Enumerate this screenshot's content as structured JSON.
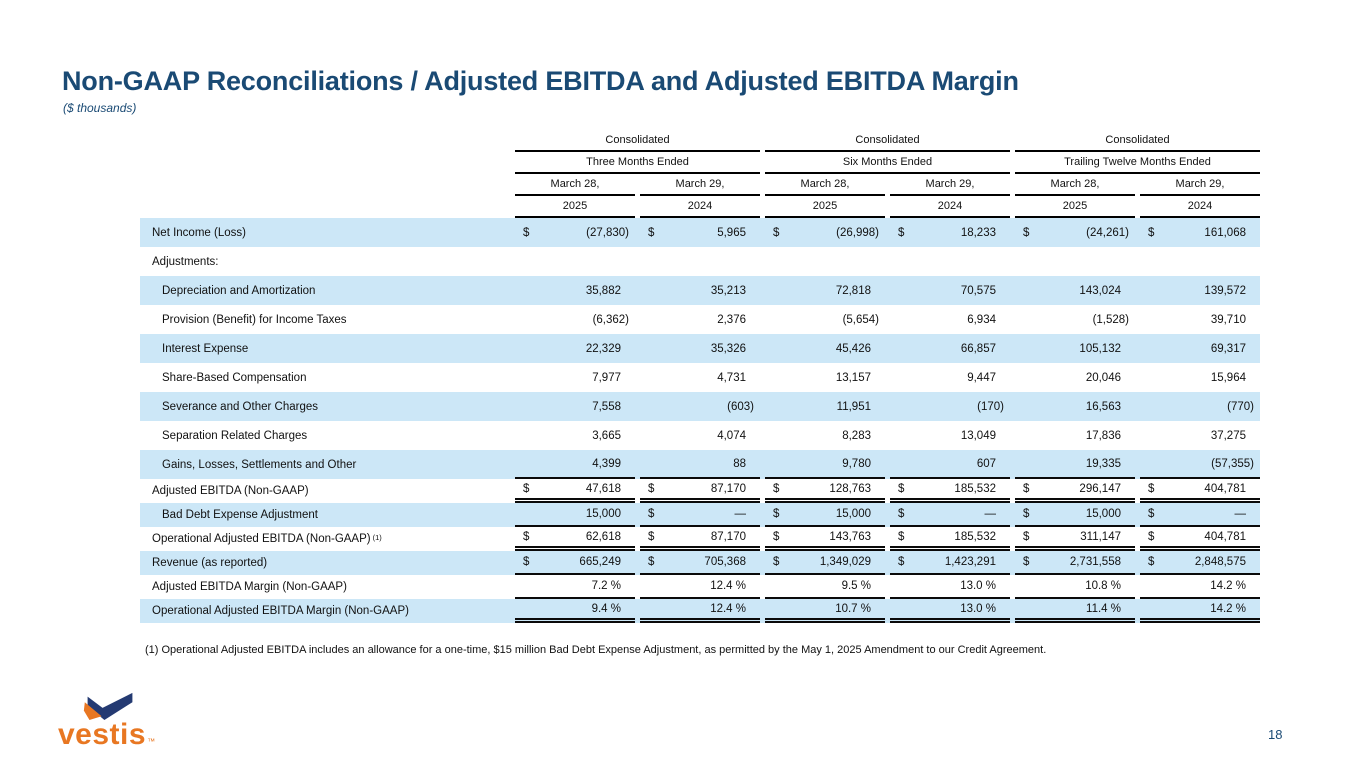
{
  "slide": {
    "title": "Non-GAAP Reconciliations / Adjusted EBITDA and Adjusted EBITDA Margin",
    "subtitle": "($ thousands)",
    "footnote": "(1) Operational Adjusted EBITDA includes an allowance for a one-time, $15 million Bad Debt Expense Adjustment, as permitted by the May 1, 2025 Amendment to our Credit Agreement.",
    "page_number": "18"
  },
  "logo": {
    "wordmark": "vestis",
    "trademark": "™"
  },
  "colors": {
    "accent_navy": "#1a4a74",
    "band_blue": "#cce7f7",
    "logo_orange": "#e87722",
    "logo_navy": "#243a72"
  },
  "table": {
    "groups": [
      {
        "region": "Consolidated",
        "period": "Three Months Ended",
        "columns": [
          {
            "date": "March 28,",
            "year": "2025"
          },
          {
            "date": "March 29,",
            "year": "2024"
          }
        ]
      },
      {
        "region": "Consolidated",
        "period": "Six Months Ended",
        "columns": [
          {
            "date": "March 28,",
            "year": "2025"
          },
          {
            "date": "March 29,",
            "year": "2024"
          }
        ]
      },
      {
        "region": "Consolidated",
        "period": "Trailing Twelve Months Ended",
        "columns": [
          {
            "date": "March 28,",
            "year": "2025"
          },
          {
            "date": "March 29,",
            "year": "2024"
          }
        ]
      }
    ],
    "rows": [
      {
        "label": "Net Income (Loss)",
        "indent": 0,
        "band": "blue",
        "size": "tall",
        "border": "none",
        "cells": [
          {
            "s": "$",
            "v": "(27,830)"
          },
          {
            "s": "$",
            "v": "5,965"
          },
          {
            "s": "$",
            "v": "(26,998)"
          },
          {
            "s": "$",
            "v": "18,233"
          },
          {
            "s": "$",
            "v": "(24,261)"
          },
          {
            "s": "$",
            "v": "161,068"
          }
        ]
      },
      {
        "label": "Adjustments:",
        "indent": 0,
        "band": "white",
        "size": "tall",
        "border": "none",
        "cells": []
      },
      {
        "label": "Depreciation and Amortization",
        "indent": 1,
        "band": "blue",
        "size": "tall",
        "border": "none",
        "cells": [
          {
            "s": "",
            "v": "35,882"
          },
          {
            "s": "",
            "v": "35,213"
          },
          {
            "s": "",
            "v": "72,818"
          },
          {
            "s": "",
            "v": "70,575"
          },
          {
            "s": "",
            "v": "143,024"
          },
          {
            "s": "",
            "v": "139,572"
          }
        ]
      },
      {
        "label": "Provision (Benefit) for Income Taxes",
        "indent": 1,
        "band": "white",
        "size": "tall",
        "border": "none",
        "cells": [
          {
            "s": "",
            "v": "(6,362)"
          },
          {
            "s": "",
            "v": "2,376"
          },
          {
            "s": "",
            "v": "(5,654)"
          },
          {
            "s": "",
            "v": "6,934"
          },
          {
            "s": "",
            "v": "(1,528)"
          },
          {
            "s": "",
            "v": "39,710"
          }
        ]
      },
      {
        "label": "Interest Expense",
        "indent": 1,
        "band": "blue",
        "size": "tall",
        "border": "none",
        "cells": [
          {
            "s": "",
            "v": "22,329"
          },
          {
            "s": "",
            "v": "35,326"
          },
          {
            "s": "",
            "v": "45,426"
          },
          {
            "s": "",
            "v": "66,857"
          },
          {
            "s": "",
            "v": "105,132"
          },
          {
            "s": "",
            "v": "69,317"
          }
        ]
      },
      {
        "label": "Share-Based Compensation",
        "indent": 1,
        "band": "white",
        "size": "tall",
        "border": "none",
        "cells": [
          {
            "s": "",
            "v": "7,977"
          },
          {
            "s": "",
            "v": "4,731"
          },
          {
            "s": "",
            "v": "13,157"
          },
          {
            "s": "",
            "v": "9,447"
          },
          {
            "s": "",
            "v": "20,046"
          },
          {
            "s": "",
            "v": "15,964"
          }
        ]
      },
      {
        "label": "Severance and Other Charges",
        "indent": 1,
        "band": "blue",
        "size": "tall",
        "border": "none",
        "cells": [
          {
            "s": "",
            "v": "7,558"
          },
          {
            "s": "",
            "v": "(603)"
          },
          {
            "s": "",
            "v": "11,951"
          },
          {
            "s": "",
            "v": "(170)"
          },
          {
            "s": "",
            "v": "16,563"
          },
          {
            "s": "",
            "v": "(770)"
          }
        ]
      },
      {
        "label": "Separation Related Charges",
        "indent": 1,
        "band": "white",
        "size": "tall",
        "border": "none",
        "cells": [
          {
            "s": "",
            "v": "3,665"
          },
          {
            "s": "",
            "v": "4,074"
          },
          {
            "s": "",
            "v": "8,283"
          },
          {
            "s": "",
            "v": "13,049"
          },
          {
            "s": "",
            "v": "17,836"
          },
          {
            "s": "",
            "v": "37,275"
          }
        ]
      },
      {
        "label": "Gains, Losses, Settlements and Other",
        "indent": 1,
        "band": "blue",
        "size": "tall",
        "border": "single",
        "cells": [
          {
            "s": "",
            "v": "4,399"
          },
          {
            "s": "",
            "v": "88"
          },
          {
            "s": "",
            "v": "9,780"
          },
          {
            "s": "",
            "v": "607"
          },
          {
            "s": "",
            "v": "19,335"
          },
          {
            "s": "",
            "v": "(57,355)"
          }
        ]
      },
      {
        "label": "Adjusted EBITDA (Non-GAAP)",
        "indent": 0,
        "band": "white",
        "size": "short",
        "border": "double",
        "cells": [
          {
            "s": "$",
            "v": "47,618"
          },
          {
            "s": "$",
            "v": "87,170"
          },
          {
            "s": "$",
            "v": "128,763"
          },
          {
            "s": "$",
            "v": "185,532"
          },
          {
            "s": "$",
            "v": "296,147"
          },
          {
            "s": "$",
            "v": "404,781"
          }
        ]
      },
      {
        "label": "Bad Debt Expense Adjustment",
        "indent": 1,
        "band": "blue",
        "size": "short",
        "border": "single",
        "cells": [
          {
            "s": "",
            "v": "15,000"
          },
          {
            "s": "$",
            "v": "—"
          },
          {
            "s": "$",
            "v": "15,000"
          },
          {
            "s": "$",
            "v": "—"
          },
          {
            "s": "$",
            "v": "15,000"
          },
          {
            "s": "$",
            "v": "—"
          }
        ]
      },
      {
        "label": "Operational Adjusted EBITDA (Non-GAAP)",
        "sup": "(1)",
        "indent": 0,
        "band": "white",
        "size": "short",
        "border": "double",
        "cells": [
          {
            "s": "$",
            "v": "62,618"
          },
          {
            "s": "$",
            "v": "87,170"
          },
          {
            "s": "$",
            "v": "143,763"
          },
          {
            "s": "$",
            "v": "185,532"
          },
          {
            "s": "$",
            "v": "311,147"
          },
          {
            "s": "$",
            "v": "404,781"
          }
        ]
      },
      {
        "label": "Revenue (as reported)",
        "indent": 0,
        "band": "blue",
        "size": "short",
        "border": "single",
        "cells": [
          {
            "s": "$",
            "v": "665,249"
          },
          {
            "s": "$",
            "v": "705,368"
          },
          {
            "s": "$",
            "v": "1,349,029"
          },
          {
            "s": "$",
            "v": "1,423,291"
          },
          {
            "s": "$",
            "v": "2,731,558"
          },
          {
            "s": "$",
            "v": "2,848,575"
          }
        ]
      },
      {
        "label": "Adjusted EBITDA Margin (Non-GAAP)",
        "indent": 0,
        "band": "white",
        "size": "short",
        "border": "single",
        "cells": [
          {
            "s": "",
            "v": "7.2 %"
          },
          {
            "s": "",
            "v": "12.4 %"
          },
          {
            "s": "",
            "v": "9.5 %"
          },
          {
            "s": "",
            "v": "13.0 %"
          },
          {
            "s": "",
            "v": "10.8 %"
          },
          {
            "s": "",
            "v": "14.2 %"
          }
        ]
      },
      {
        "label": "Operational Adjusted EBITDA Margin (Non-GAAP)",
        "indent": 0,
        "band": "blue",
        "size": "short",
        "border": "double",
        "cells": [
          {
            "s": "",
            "v": "9.4 %"
          },
          {
            "s": "",
            "v": "12.4 %"
          },
          {
            "s": "",
            "v": "10.7 %"
          },
          {
            "s": "",
            "v": "13.0 %"
          },
          {
            "s": "",
            "v": "11.4 %"
          },
          {
            "s": "",
            "v": "14.2 %"
          }
        ]
      }
    ]
  }
}
